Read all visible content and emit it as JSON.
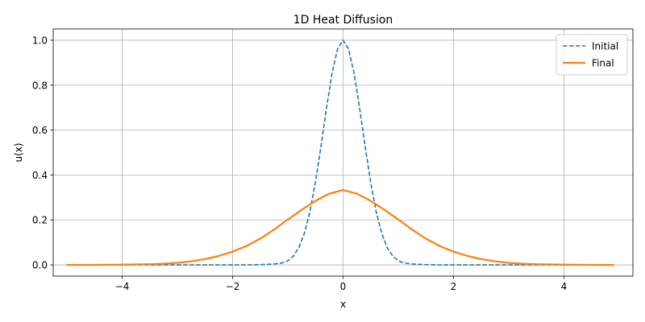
{
  "chart_data": {
    "type": "line",
    "title": "1D Heat Diffusion",
    "xlabel": "x",
    "ylabel": "u(x)",
    "xlim": [
      -5.25,
      5.25
    ],
    "ylim": [
      -0.05,
      1.05
    ],
    "xticks": [
      -4,
      -2,
      0,
      2,
      4
    ],
    "xtick_labels": [
      "−4",
      "−2",
      "0",
      "2",
      "4"
    ],
    "yticks": [
      0.0,
      0.2,
      0.4,
      0.6,
      0.8,
      1.0
    ],
    "ytick_labels": [
      "0.0",
      "0.2",
      "0.4",
      "0.6",
      "0.8",
      "1.0"
    ],
    "grid": true,
    "legend_position": "top-right",
    "series": [
      {
        "name": "Initial",
        "color": "#1f77b4",
        "style": "dashed",
        "x": [
          -5.0,
          -4.5,
          -4.0,
          -3.5,
          -3.0,
          -2.5,
          -2.0,
          -1.75,
          -1.5,
          -1.25,
          -1.1,
          -1.0,
          -0.9,
          -0.8,
          -0.7,
          -0.6,
          -0.5,
          -0.4,
          -0.3,
          -0.2,
          -0.1,
          0.0,
          0.1,
          0.2,
          0.3,
          0.4,
          0.5,
          0.6,
          0.7,
          0.8,
          0.9,
          1.0,
          1.1,
          1.25,
          1.5,
          1.75,
          2.0,
          2.5,
          3.0,
          3.5,
          4.0,
          4.5,
          4.9
        ],
        "y": [
          0.0,
          0.0,
          0.0,
          0.0,
          0.0,
          0.0,
          0.0,
          0.0,
          0.001,
          0.004,
          0.009,
          0.018,
          0.039,
          0.077,
          0.141,
          0.237,
          0.368,
          0.527,
          0.698,
          0.852,
          0.961,
          1.0,
          0.961,
          0.852,
          0.698,
          0.527,
          0.368,
          0.237,
          0.141,
          0.077,
          0.039,
          0.018,
          0.009,
          0.004,
          0.001,
          0.0,
          0.0,
          0.0,
          0.0,
          0.0,
          0.0,
          0.0,
          0.0
        ]
      },
      {
        "name": "Final",
        "color": "#ff7f0e",
        "style": "solid",
        "x": [
          -5.0,
          -4.5,
          -4.0,
          -3.5,
          -3.25,
          -3.0,
          -2.75,
          -2.5,
          -2.25,
          -2.0,
          -1.75,
          -1.5,
          -1.25,
          -1.0,
          -0.75,
          -0.5,
          -0.25,
          0.0,
          0.25,
          0.5,
          0.75,
          1.0,
          1.25,
          1.5,
          1.75,
          2.0,
          2.25,
          2.5,
          2.75,
          3.0,
          3.25,
          3.5,
          4.0,
          4.5,
          4.9
        ],
        "y": [
          0.0,
          0.0,
          0.001,
          0.003,
          0.005,
          0.009,
          0.016,
          0.026,
          0.04,
          0.059,
          0.084,
          0.117,
          0.157,
          0.202,
          0.245,
          0.285,
          0.317,
          0.333,
          0.317,
          0.285,
          0.245,
          0.202,
          0.157,
          0.117,
          0.084,
          0.059,
          0.04,
          0.026,
          0.016,
          0.009,
          0.005,
          0.003,
          0.001,
          0.0,
          0.0
        ]
      }
    ]
  }
}
